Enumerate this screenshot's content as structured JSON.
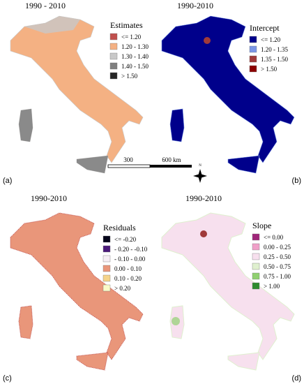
{
  "panels": [
    {
      "label": "(a)",
      "title": "1990 - 2010",
      "legend": {
        "title": "Estimates",
        "items": [
          {
            "label": "<= 1.20",
            "color": "#c0504d"
          },
          {
            "label": "1.20  - 1.30",
            "color": "#f4b183"
          },
          {
            "label": "1.30  - 1.40",
            "color": "#c8c8c8"
          },
          {
            "label": "1.40  - 1.50",
            "color": "#7f7f7f"
          },
          {
            "label": "> 1.50",
            "color": "#262626"
          }
        ]
      }
    },
    {
      "label": "(b)",
      "title": "1990-2010",
      "legend": {
        "title": "Intercept",
        "items": [
          {
            "label": "<= 1.20",
            "color": "#00008b"
          },
          {
            "label": "1.20  - 1.35",
            "color": "#7b96e6"
          },
          {
            "label": "1.35  - 1.50",
            "color": "#a03a3a"
          },
          {
            "label": "> 1.50",
            "color": "#8b0000"
          }
        ]
      }
    },
    {
      "label": "(c)",
      "title": "1990-2010",
      "legend": {
        "title": "Residuals",
        "items": [
          {
            "label": "<= -0.20",
            "color": "#05051a"
          },
          {
            "label": "- 0.20  - -0.10",
            "color": "#4b1a7a"
          },
          {
            "label": "- 0.10  - 0.00",
            "color": "#f6eef4"
          },
          {
            "label": "0.00  - 0.10",
            "color": "#e9967a"
          },
          {
            "label": "0.10  - 0.20",
            "color": "#f5d48a"
          },
          {
            "label": "> 0.20",
            "color": "#fafac8"
          }
        ]
      }
    },
    {
      "label": "(d)",
      "title": "1990-2010",
      "legend": {
        "title": "Slope",
        "items": [
          {
            "label": "<= 0.00",
            "color": "#a0267a"
          },
          {
            "label": "0.00 - 0.25",
            "color": "#f0a0c8"
          },
          {
            "label": "0.25 - 0.50",
            "color": "#f7e0ee"
          },
          {
            "label": "0.50 - 0.75",
            "color": "#dff0cf"
          },
          {
            "label": "0.75 - 1.00",
            "color": "#90d070"
          },
          {
            "label": "> 1.00",
            "color": "#2e8b2e"
          }
        ]
      }
    }
  ],
  "scale_bar": {
    "labels": [
      "300",
      "600 km"
    ],
    "north": "N"
  }
}
